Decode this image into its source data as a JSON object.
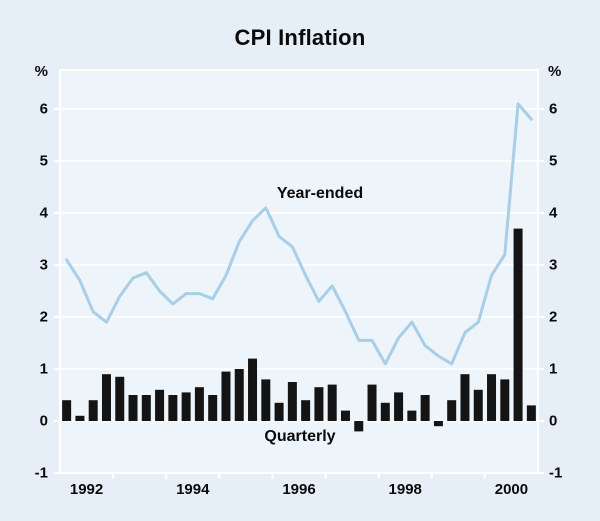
{
  "chart_data": {
    "type": "combo-bar-line",
    "title": "CPI Inflation",
    "y_unit": "%",
    "ylim": [
      -1,
      6.75
    ],
    "yticks": [
      "6",
      "5",
      "4",
      "3",
      "2",
      "1",
      "0",
      "-1"
    ],
    "ytick_values": [
      6,
      5,
      4,
      3,
      2,
      1,
      0,
      -1
    ],
    "xticks": [
      "1992",
      "1994",
      "1996",
      "1998",
      "2000"
    ],
    "xtick_year_index": [
      0,
      2,
      4,
      6,
      8
    ],
    "x_span_years": 9,
    "grid": "on",
    "categories": [
      "1992 Q1",
      "1992 Q2",
      "1992 Q3",
      "1992 Q4",
      "1993 Q1",
      "1993 Q2",
      "1993 Q3",
      "1993 Q4",
      "1994 Q1",
      "1994 Q2",
      "1994 Q3",
      "1994 Q4",
      "1995 Q1",
      "1995 Q2",
      "1995 Q3",
      "1995 Q4",
      "1996 Q1",
      "1996 Q2",
      "1996 Q3",
      "1996 Q4",
      "1997 Q1",
      "1997 Q2",
      "1997 Q3",
      "1997 Q4",
      "1998 Q1",
      "1998 Q2",
      "1998 Q3",
      "1998 Q4",
      "1999 Q1",
      "1999 Q2",
      "1999 Q3",
      "1999 Q4",
      "2000 Q1",
      "2000 Q2",
      "2000 Q3",
      "2000 Q4"
    ],
    "series": [
      {
        "name": "Year-ended",
        "type": "line",
        "color": "#a8cee8",
        "values": [
          3.1,
          2.7,
          2.1,
          1.9,
          2.4,
          2.75,
          2.85,
          2.5,
          2.25,
          2.45,
          2.45,
          2.35,
          2.8,
          3.45,
          3.85,
          4.1,
          3.55,
          3.35,
          2.8,
          2.3,
          2.6,
          2.1,
          1.55,
          1.55,
          1.1,
          1.6,
          1.9,
          1.45,
          1.25,
          1.1,
          1.7,
          1.9,
          2.8,
          3.2,
          6.1,
          5.8
        ]
      },
      {
        "name": "Quarterly",
        "type": "bar",
        "color": "#141414",
        "values": [
          0.4,
          0.1,
          0.4,
          0.9,
          0.85,
          0.5,
          0.5,
          0.6,
          0.5,
          0.55,
          0.65,
          0.5,
          0.95,
          1.0,
          1.2,
          0.8,
          0.35,
          0.75,
          0.4,
          0.65,
          0.7,
          0.2,
          -0.2,
          0.7,
          0.35,
          0.55,
          0.2,
          0.5,
          -0.1,
          0.4,
          0.9,
          0.6,
          0.9,
          0.8,
          3.7,
          0.3
        ]
      }
    ],
    "colors": {
      "background": "#e6eff7",
      "plot_background": "#edf4fa",
      "gridline": "#ffffff",
      "line_series": "#a8cee8",
      "bar_series": "#141414",
      "text": "#0b0b0b"
    }
  }
}
